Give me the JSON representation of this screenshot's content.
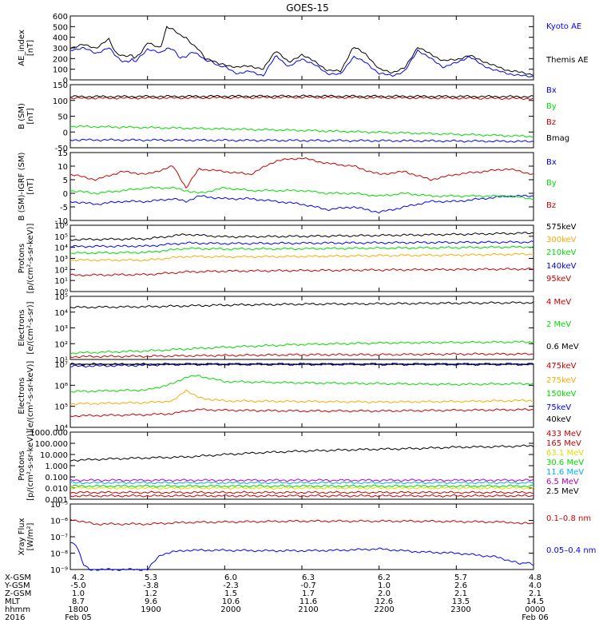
{
  "title": "GOES-15",
  "colors": {
    "black": "#000000",
    "blue": "#0000ff",
    "green": "#00dd00",
    "red": "#cc0000",
    "orange": "#ffaa00",
    "cyan": "#00aaff",
    "yellow": "#dddd00",
    "magenta": "#bb00bb"
  },
  "chart_data": [
    {
      "id": "ae",
      "type": "line",
      "ylabel": [
        "AE_index",
        "[nT]"
      ],
      "ylim": [
        0,
        600
      ],
      "log": false,
      "yticks": [
        0,
        100,
        200,
        300,
        400,
        500,
        600
      ],
      "yticklabels": [
        "0",
        "100",
        "200",
        "300",
        "400",
        "500",
        "600"
      ],
      "x": [
        0,
        10,
        20,
        30,
        35,
        40,
        45,
        48,
        50,
        55,
        60,
        65,
        70,
        75,
        80,
        85,
        90,
        95,
        100,
        105,
        110,
        115,
        120,
        130,
        140,
        150,
        160,
        170,
        180,
        190,
        200,
        210,
        220,
        230,
        240,
        250,
        260,
        270,
        280,
        290,
        300,
        310,
        320,
        330,
        340,
        350,
        360
      ],
      "series": [
        {
          "name": "Kyoto AE",
          "color": "blue",
          "values": [
            280,
            300,
            250,
            300,
            230,
            180,
            170,
            190,
            160,
            230,
            290,
            270,
            250,
            300,
            290,
            200,
            220,
            270,
            230,
            180,
            180,
            130,
            120,
            60,
            80,
            40,
            230,
            120,
            200,
            140,
            60,
            50,
            220,
            160,
            60,
            40,
            80,
            280,
            200,
            120,
            160,
            220,
            140,
            90,
            60,
            40,
            30
          ]
        },
        {
          "name": "Themis AE",
          "color": "black",
          "values": [
            300,
            330,
            300,
            380,
            260,
            230,
            220,
            230,
            200,
            260,
            350,
            320,
            300,
            500,
            470,
            420,
            400,
            330,
            280,
            200,
            190,
            150,
            140,
            120,
            130,
            100,
            280,
            160,
            240,
            170,
            90,
            80,
            310,
            240,
            100,
            70,
            110,
            310,
            240,
            180,
            190,
            230,
            180,
            130,
            90,
            70,
            50
          ]
        }
      ]
    },
    {
      "id": "bsm",
      "type": "line",
      "ylabel": [
        "B (SM)",
        "[nT]"
      ],
      "ylim": [
        -50,
        150
      ],
      "log": false,
      "yticks": [
        -50,
        0,
        50,
        100,
        150
      ],
      "yticklabels": [
        "-50",
        "0",
        "50",
        "100",
        "150"
      ],
      "x": [
        0,
        90,
        180,
        270,
        360
      ],
      "series": [
        {
          "name": "Bx",
          "color": "blue",
          "values": [
            -25,
            -26,
            -27,
            -28,
            -30
          ]
        },
        {
          "name": "By",
          "color": "green",
          "values": [
            18,
            12,
            5,
            -4,
            -14
          ]
        },
        {
          "name": "Bz",
          "color": "red",
          "values": [
            107,
            108,
            110,
            108,
            106
          ]
        },
        {
          "name": "Bmag",
          "color": "black",
          "values": [
            112,
            113,
            114,
            113,
            112
          ]
        }
      ]
    },
    {
      "id": "bigrf",
      "type": "line",
      "ylabel": [
        "B (SM)-IGRF (SM)",
        "[nT]"
      ],
      "ylim": [
        -10,
        15
      ],
      "log": false,
      "yticks": [
        -10,
        -5,
        0,
        5,
        10,
        15
      ],
      "yticklabels": [
        "-10",
        "-5",
        "0",
        "5",
        "10",
        "15"
      ],
      "x": [
        0,
        20,
        40,
        60,
        80,
        90,
        100,
        120,
        140,
        160,
        180,
        200,
        220,
        240,
        260,
        280,
        300,
        320,
        340,
        360
      ],
      "series": [
        {
          "name": "Bx",
          "color": "blue",
          "values": [
            -3,
            -4,
            -3,
            -3,
            -2,
            -3,
            -1,
            -2,
            -2,
            -3,
            -4,
            -6,
            -5,
            -7,
            -5,
            -3,
            -3,
            -2,
            -1,
            -1
          ]
        },
        {
          "name": "By",
          "color": "green",
          "values": [
            1,
            0,
            1,
            2,
            2,
            1,
            0,
            2,
            1,
            1,
            1,
            0,
            0,
            -1,
            0,
            -1,
            -1,
            -1,
            -1,
            -2
          ]
        },
        {
          "name": "Bz",
          "color": "red",
          "values": [
            7,
            5,
            8,
            7,
            10,
            2,
            9,
            8,
            7,
            12,
            13,
            11,
            10,
            7,
            8,
            5,
            7,
            8,
            9,
            7
          ]
        }
      ]
    },
    {
      "id": "prot_low",
      "type": "line",
      "ylabel": [
        "Protons",
        "[p/(cm²-s-sr-keV)]"
      ],
      "ylim": [
        1,
        1000000
      ],
      "log": true,
      "yticks": [
        1,
        10,
        100,
        1000,
        10000,
        100000,
        1000000
      ],
      "yticklabels": [
        "10⁰",
        "10¹",
        "10²",
        "10³",
        "10⁴",
        "10⁵",
        "10⁶"
      ],
      "x": [
        0,
        60,
        90,
        120,
        180,
        240,
        300,
        360
      ],
      "series": [
        {
          "name": "575keV",
          "color": "black",
          "values": [
            50000,
            60000,
            150000,
            90000,
            100000,
            120000,
            150000,
            200000
          ]
        },
        {
          "name": "300keV",
          "color": "orange",
          "values": [
            700,
            700,
            1500,
            1400,
            1500,
            1800,
            2000,
            2500
          ]
        },
        {
          "name": "210keV",
          "color": "green",
          "values": [
            3000,
            3500,
            8000,
            7000,
            7500,
            8500,
            9500,
            11000
          ]
        },
        {
          "name": "140keV",
          "color": "blue",
          "values": [
            12000,
            13000,
            25000,
            22000,
            24000,
            26000,
            28000,
            30000
          ]
        },
        {
          "name": "95keV",
          "color": "red",
          "values": [
            30,
            35,
            60,
            70,
            80,
            90,
            100,
            110
          ]
        }
      ]
    },
    {
      "id": "elec_high",
      "type": "line",
      "ylabel": [
        "Electrons",
        "[e/(cm²-s-sr)]"
      ],
      "ylim": [
        10,
        100000
      ],
      "log": true,
      "yticks": [
        10,
        100,
        1000,
        10000,
        100000
      ],
      "yticklabels": [
        "10¹",
        "10²",
        "10³",
        "10⁴",
        "10⁵"
      ],
      "x": [
        0,
        60,
        120,
        180,
        240,
        300,
        360
      ],
      "series": [
        {
          "name": "4 MeV",
          "color": "red",
          "values": [
            15,
            16,
            18,
            20,
            20,
            22,
            22
          ]
        },
        {
          "name": "2 MeV",
          "color": "green",
          "values": [
            25,
            35,
            60,
            90,
            110,
            120,
            130
          ]
        },
        {
          "name": "0.6 MeV",
          "color": "black",
          "values": [
            20000,
            22000,
            28000,
            32000,
            34000,
            37000,
            40000
          ]
        }
      ]
    },
    {
      "id": "elec_low",
      "type": "line",
      "ylabel": [
        "Electrons",
        "[e/(cm²-s-sr-keV)]"
      ],
      "ylim": [
        10000,
        10000000
      ],
      "log": true,
      "yticks": [
        10000,
        100000,
        1000000,
        10000000
      ],
      "yticklabels": [
        "10⁴",
        "10⁵",
        "10⁶",
        "10⁷"
      ],
      "x": [
        0,
        60,
        80,
        90,
        100,
        120,
        180,
        240,
        300,
        360
      ],
      "series": [
        {
          "name": "475keV",
          "color": "red",
          "values": [
            35000,
            40000,
            45000,
            60000,
            70000,
            65000,
            60000,
            60000,
            65000,
            70000
          ]
        },
        {
          "name": "275keV",
          "color": "orange",
          "values": [
            130000,
            150000,
            180000,
            600000,
            250000,
            180000,
            170000,
            160000,
            170000,
            190000
          ]
        },
        {
          "name": "150keV",
          "color": "green",
          "values": [
            500000,
            600000,
            1200000,
            2500000,
            2800000,
            1500000,
            1300000,
            1200000,
            1100000,
            1200000
          ]
        },
        {
          "name": "75keV",
          "color": "blue",
          "values": [
            8000000,
            9000000,
            10000000,
            10000000,
            10000000,
            10000000,
            10000000,
            10000000,
            10000000,
            10000000
          ]
        },
        {
          "name": "40keV",
          "color": "black",
          "values": [
            10000000,
            10000000,
            10000000,
            10000000,
            10000000,
            10000000,
            10000000,
            10000000,
            10000000,
            10000000
          ]
        }
      ]
    },
    {
      "id": "prot_high",
      "type": "line",
      "ylabel": [
        "Protons",
        "[p/(cm²-s-sr-keV)]"
      ],
      "ylim": [
        0.001,
        1000
      ],
      "log": true,
      "yticks": [
        0.001,
        0.01,
        0.1,
        1,
        10,
        100,
        1000
      ],
      "yticklabels": [
        "0.001",
        "0.010",
        "0.100",
        "1.000",
        "10.000",
        "100.000",
        "1000.000"
      ],
      "x": [
        0,
        30,
        60,
        90,
        120,
        150,
        180,
        210,
        240,
        270,
        300,
        330,
        360
      ],
      "series": [
        {
          "name": "433 MeV",
          "color": "red",
          "values": [
            0.002,
            0.002,
            0.002,
            0.002,
            0.002,
            0.002,
            0.002,
            0.002,
            0.002,
            0.002,
            0.002,
            0.002,
            0.002
          ]
        },
        {
          "name": "165 MeV",
          "color": "red",
          "values": [
            0.004,
            0.004,
            0.004,
            0.004,
            0.004,
            0.004,
            0.004,
            0.004,
            0.004,
            0.004,
            0.004,
            0.004,
            0.004
          ]
        },
        {
          "name": "63.1 MeV",
          "color": "yellow",
          "values": [
            0.01,
            0.01,
            0.01,
            0.01,
            0.01,
            0.01,
            0.01,
            0.01,
            0.01,
            0.01,
            0.01,
            0.01,
            0.01
          ]
        },
        {
          "name": "30.6 MeV",
          "color": "green",
          "values": [
            0.015,
            0.015,
            0.015,
            0.015,
            0.015,
            0.015,
            0.015,
            0.015,
            0.015,
            0.015,
            0.015,
            0.015,
            0.015
          ]
        },
        {
          "name": "11.6 MeV",
          "color": "cyan",
          "values": [
            0.03,
            0.03,
            0.03,
            0.03,
            0.03,
            0.03,
            0.03,
            0.03,
            0.03,
            0.03,
            0.03,
            0.03,
            0.03
          ]
        },
        {
          "name": "6.5 MeV",
          "color": "magenta",
          "values": [
            0.05,
            0.05,
            0.05,
            0.05,
            0.05,
            0.05,
            0.05,
            0.05,
            0.05,
            0.05,
            0.05,
            0.05,
            0.05
          ]
        },
        {
          "name": "2.5 MeV",
          "color": "black",
          "values": [
            3,
            4,
            5,
            6,
            10,
            15,
            20,
            25,
            30,
            35,
            45,
            50,
            60
          ]
        }
      ]
    },
    {
      "id": "xray",
      "type": "line",
      "ylabel": [
        "Xray Flux",
        "[W/m²]"
      ],
      "ylim": [
        1e-09,
        1e-05
      ],
      "log": true,
      "yticks": [
        1e-09,
        1e-08,
        1e-07,
        1e-06,
        1e-05
      ],
      "yticklabels": [
        "10⁻⁹",
        "10⁻⁸",
        "10⁻⁷",
        "10⁻⁶",
        "10⁻⁵"
      ],
      "x": [
        0,
        5,
        10,
        15,
        20,
        30,
        40,
        50,
        60,
        70,
        80,
        90,
        120,
        150,
        180,
        210,
        240,
        270,
        300,
        330,
        345,
        350,
        355,
        360
      ],
      "series": [
        {
          "name": "0.1–0.8 nm",
          "color": "red",
          "values": [
            1.2e-06,
            1e-06,
            8e-07,
            7e-07,
            6e-07,
            6e-07,
            6e-07,
            6e-07,
            6e-07,
            6.5e-07,
            7e-07,
            7.5e-07,
            8e-07,
            8.5e-07,
            9e-07,
            9e-07,
            9e-07,
            9e-07,
            8.5e-07,
            8e-07,
            7.5e-07,
            6e-07,
            7e-07,
            6.5e-07
          ]
        },
        {
          "name": "0.05–0.4 nm",
          "color": "blue",
          "values": [
            5e-08,
            3e-08,
            2e-09,
            1e-09,
            1e-09,
            1e-09,
            1e-09,
            1e-09,
            1e-09,
            8e-09,
            1.2e-08,
            1.5e-08,
            1.5e-08,
            1.4e-08,
            1.4e-08,
            1.5e-08,
            1.8e-08,
            1.2e-08,
            1e-08,
            6e-09,
            3e-09,
            2e-09,
            3e-09,
            2e-09
          ]
        }
      ]
    }
  ],
  "time_axis": {
    "rows": [
      {
        "label": "X-GSM",
        "values": [
          "4.2",
          "5.3",
          "6.0",
          "6.3",
          "6.2",
          "5.7",
          "4.8"
        ]
      },
      {
        "label": "Y-GSM",
        "values": [
          "-5.0",
          "-3.8",
          "-2.3",
          "-0.7",
          "1.0",
          "2.6",
          "4.0"
        ]
      },
      {
        "label": "Z-GSM",
        "values": [
          "1.0",
          "1.2",
          "1.5",
          "1.7",
          "2.0",
          "2.1",
          "2.1"
        ]
      },
      {
        "label": "MLT",
        "values": [
          "8.7",
          "9.6",
          "10.6",
          "11.6",
          "12.6",
          "13.5",
          "14.5"
        ]
      },
      {
        "label": "hhmm",
        "values": [
          "1800",
          "1900",
          "2000",
          "2100",
          "2200",
          "2300",
          "0000"
        ]
      }
    ],
    "year": "2016",
    "date_start": "Feb 05",
    "date_end": "Feb 06"
  }
}
